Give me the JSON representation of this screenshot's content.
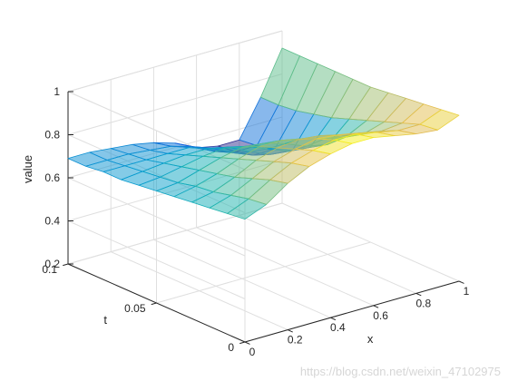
{
  "watermark": "https://blog.csdn.net/weixin_47102975",
  "chart_data": {
    "type": "surface",
    "xlabel": "x",
    "ylabel": "t",
    "zlabel": "value",
    "xlim": [
      0,
      1
    ],
    "ylim": [
      0,
      0.1
    ],
    "zlim": [
      0.2,
      1
    ],
    "x_ticks": [
      "0",
      "0.2",
      "0.4",
      "0.6",
      "0.8",
      "1"
    ],
    "t_ticks": [
      "0",
      "0.05",
      "0.1"
    ],
    "z_ticks": [
      "0.2",
      "0.4",
      "0.6",
      "0.8",
      "1"
    ],
    "grid": true,
    "colormap": "parula",
    "face_alpha": 0.5,
    "x": [
      0,
      0.1,
      0.2,
      0.3,
      0.4,
      0.5,
      0.6,
      0.7,
      0.8,
      0.9,
      1.0
    ],
    "t": [
      0,
      0.01,
      0.02,
      0.03,
      0.04,
      0.05,
      0.06,
      0.07,
      0.08,
      0.09,
      0.1
    ],
    "z": [
      [
        0.77,
        0.81,
        0.88,
        0.93,
        0.96,
        0.98,
        0.98,
        0.96,
        0.94,
        0.93,
        0.97
      ],
      [
        0.76,
        0.8,
        0.86,
        0.91,
        0.94,
        0.96,
        0.96,
        0.94,
        0.92,
        0.92,
        0.96
      ],
      [
        0.75,
        0.78,
        0.83,
        0.88,
        0.91,
        0.93,
        0.92,
        0.9,
        0.88,
        0.89,
        0.95
      ],
      [
        0.74,
        0.76,
        0.8,
        0.85,
        0.88,
        0.89,
        0.88,
        0.85,
        0.83,
        0.86,
        0.94
      ],
      [
        0.73,
        0.75,
        0.78,
        0.82,
        0.85,
        0.85,
        0.83,
        0.8,
        0.78,
        0.83,
        0.93
      ],
      [
        0.72,
        0.73,
        0.76,
        0.79,
        0.81,
        0.8,
        0.77,
        0.73,
        0.71,
        0.8,
        0.92
      ],
      [
        0.71,
        0.72,
        0.74,
        0.76,
        0.77,
        0.75,
        0.71,
        0.67,
        0.66,
        0.77,
        0.92
      ],
      [
        0.7,
        0.71,
        0.72,
        0.73,
        0.73,
        0.71,
        0.66,
        0.62,
        0.61,
        0.75,
        0.92
      ],
      [
        0.7,
        0.7,
        0.7,
        0.7,
        0.7,
        0.67,
        0.62,
        0.58,
        0.58,
        0.73,
        0.92
      ],
      [
        0.69,
        0.69,
        0.69,
        0.68,
        0.67,
        0.64,
        0.59,
        0.56,
        0.56,
        0.72,
        0.92
      ],
      [
        0.69,
        0.69,
        0.68,
        0.67,
        0.65,
        0.62,
        0.57,
        0.55,
        0.55,
        0.72,
        0.92
      ]
    ]
  }
}
